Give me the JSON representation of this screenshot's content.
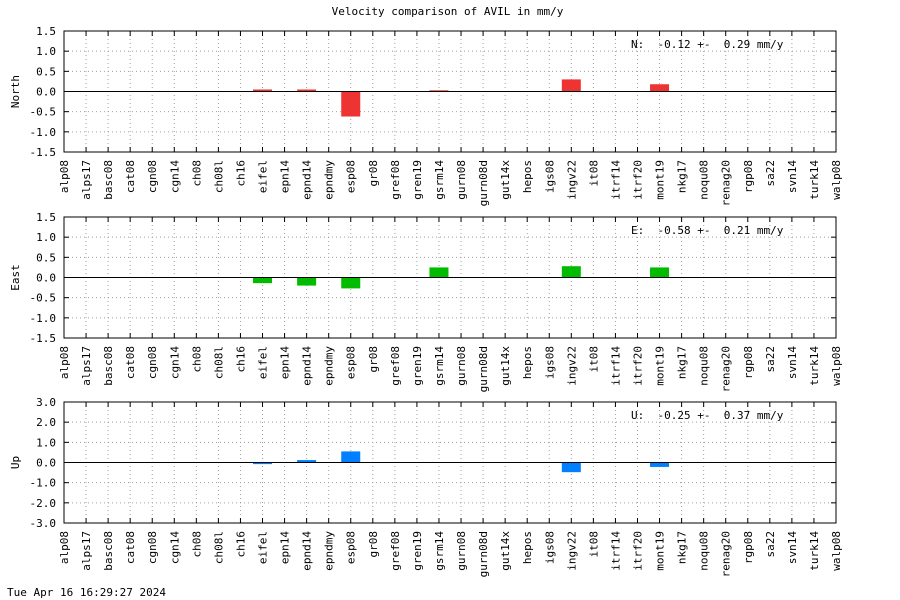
{
  "page": {
    "title": "Velocity comparison of AVIL in mm/y",
    "timestamp": "Tue Apr 16 16:29:27 2024"
  },
  "chart_data": [
    {
      "type": "bar",
      "ylabel": "North",
      "annotation": "N:  -0.12 +-  0.29 mm/y",
      "color": "#ee3333",
      "ylim": [
        -1.5,
        1.5
      ],
      "yticks": [
        -1.5,
        -1.0,
        -0.5,
        0.0,
        0.5,
        1.0,
        1.5
      ],
      "ytick_labels": [
        "-1.5",
        "-1.0",
        "-0.5",
        "0.0",
        "0.5",
        "1.0",
        "1.5"
      ],
      "grid": true,
      "categories": [
        "alp08",
        "alps17",
        "basc08",
        "cat08",
        "cgn08",
        "cgn14",
        "ch08",
        "ch08l",
        "ch16",
        "eifel",
        "epn14",
        "epnd14",
        "epndmy",
        "esp08",
        "gr08",
        "gref08",
        "gren19",
        "gsrm14",
        "gurn08",
        "gurn08d",
        "gut14x",
        "hepos",
        "igs08",
        "ingv22",
        "it08",
        "itrf14",
        "itrf20",
        "mont19",
        "nkg17",
        "noqu08",
        "renag20",
        "rgp08",
        "sa22",
        "svn14",
        "turk14",
        "walp08"
      ],
      "values": [
        null,
        null,
        null,
        null,
        null,
        null,
        null,
        null,
        null,
        0.05,
        null,
        0.05,
        null,
        -0.62,
        null,
        null,
        null,
        0.03,
        null,
        null,
        null,
        null,
        null,
        0.3,
        null,
        null,
        null,
        0.18,
        null,
        null,
        null,
        null,
        null,
        null,
        null,
        null
      ]
    },
    {
      "type": "bar",
      "ylabel": "East",
      "annotation": "E:  -0.58 +-  0.21 mm/y",
      "color": "#00bb00",
      "ylim": [
        -1.5,
        1.5
      ],
      "yticks": [
        -1.5,
        -1.0,
        -0.5,
        0.0,
        0.5,
        1.0,
        1.5
      ],
      "ytick_labels": [
        "-1.5",
        "-1.0",
        "-0.5",
        "0.0",
        "0.5",
        "1.0",
        "1.5"
      ],
      "grid": true,
      "categories": [
        "alp08",
        "alps17",
        "basc08",
        "cat08",
        "cgn08",
        "cgn14",
        "ch08",
        "ch08l",
        "ch16",
        "eifel",
        "epn14",
        "epnd14",
        "epndmy",
        "esp08",
        "gr08",
        "gref08",
        "gren19",
        "gsrm14",
        "gurn08",
        "gurn08d",
        "gut14x",
        "hepos",
        "igs08",
        "ingv22",
        "it08",
        "itrf14",
        "itrf20",
        "mont19",
        "nkg17",
        "noqu08",
        "renag20",
        "rgp08",
        "sa22",
        "svn14",
        "turk14",
        "walp08"
      ],
      "values": [
        null,
        null,
        null,
        null,
        null,
        null,
        null,
        null,
        null,
        -0.14,
        null,
        -0.2,
        null,
        -0.27,
        null,
        null,
        null,
        0.25,
        null,
        null,
        null,
        null,
        null,
        0.28,
        null,
        null,
        null,
        0.25,
        null,
        null,
        null,
        null,
        null,
        null,
        null,
        null
      ]
    },
    {
      "type": "bar",
      "ylabel": "Up",
      "annotation": "U:  -0.25 +-  0.37 mm/y",
      "color": "#0080ff",
      "ylim": [
        -3.0,
        3.0
      ],
      "yticks": [
        -3.0,
        -2.0,
        -1.0,
        0.0,
        1.0,
        2.0,
        3.0
      ],
      "ytick_labels": [
        "-3.0",
        "-2.0",
        "-1.0",
        "0.0",
        "1.0",
        "2.0",
        "3.0"
      ],
      "grid": true,
      "categories": [
        "alp08",
        "alps17",
        "basc08",
        "cat08",
        "cgn08",
        "cgn14",
        "ch08",
        "ch08l",
        "ch16",
        "eifel",
        "epn14",
        "epnd14",
        "epndmy",
        "esp08",
        "gr08",
        "gref08",
        "gren19",
        "gsrm14",
        "gurn08",
        "gurn08d",
        "gut14x",
        "hepos",
        "igs08",
        "ingv22",
        "it08",
        "itrf14",
        "itrf20",
        "mont19",
        "nkg17",
        "noqu08",
        "renag20",
        "rgp08",
        "sa22",
        "svn14",
        "turk14",
        "walp08"
      ],
      "values": [
        null,
        null,
        null,
        null,
        null,
        null,
        null,
        null,
        null,
        -0.08,
        null,
        0.12,
        null,
        0.55,
        null,
        null,
        null,
        null,
        null,
        null,
        null,
        null,
        null,
        -0.48,
        null,
        null,
        null,
        -0.22,
        null,
        null,
        null,
        null,
        null,
        null,
        null,
        null
      ]
    }
  ]
}
